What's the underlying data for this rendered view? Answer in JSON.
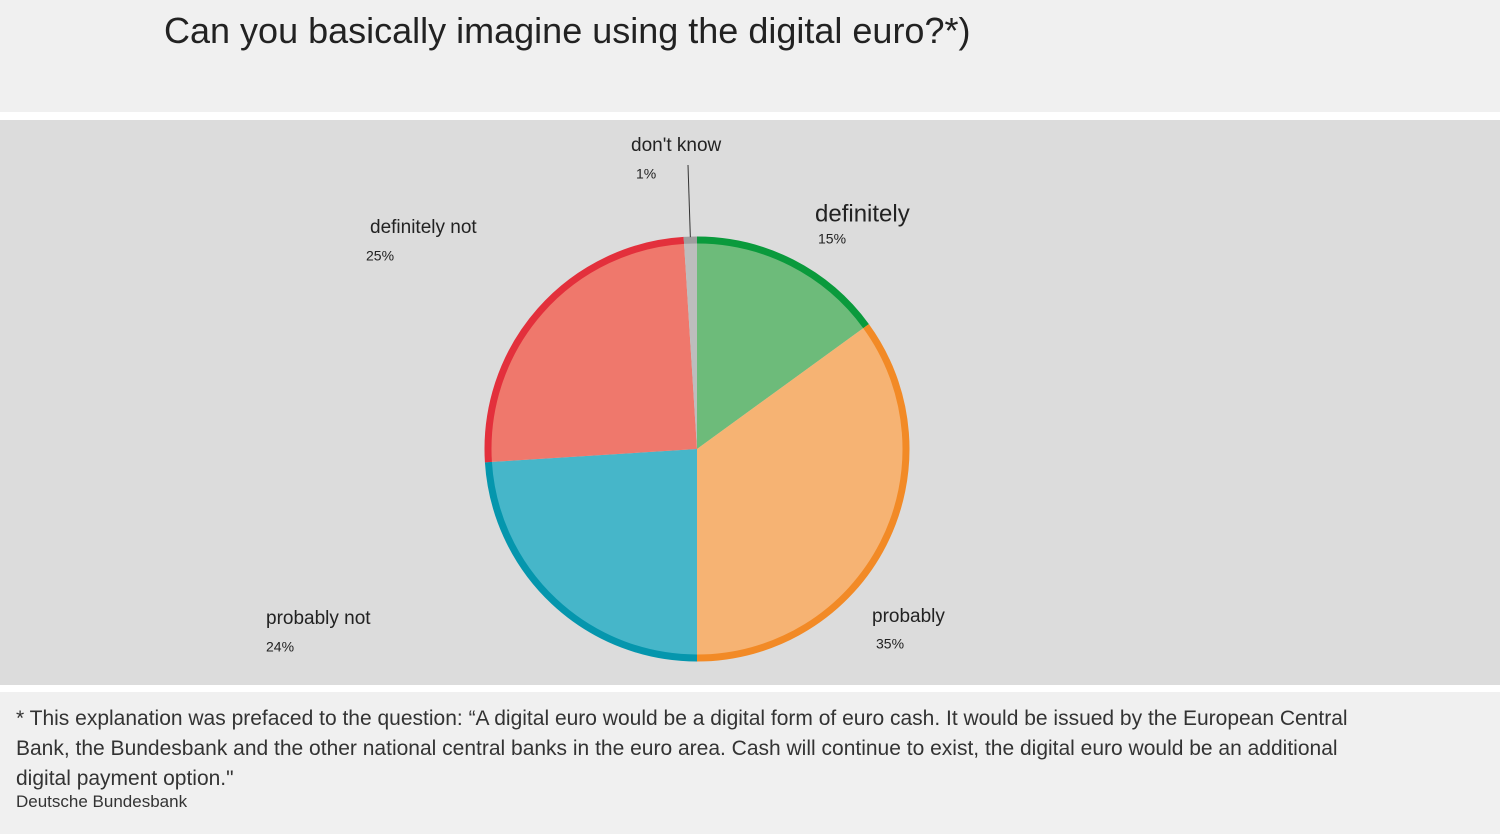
{
  "chart_data": {
    "type": "pie",
    "title": "Can you basically imagine using the digital euro?*)",
    "categories": [
      "definitely",
      "probably",
      "probably not",
      "definitely not",
      "don't know"
    ],
    "values": [
      15,
      35,
      24,
      25,
      1
    ],
    "value_labels": [
      "15%",
      "35%",
      "24%",
      "25%",
      "1%"
    ],
    "colors": [
      "#6dbb7a",
      "#f6b373",
      "#46b6c9",
      "#ef786c",
      "#bdbdbd"
    ],
    "border_colors": [
      "#0a9a3c",
      "#f28a26",
      "#0596ad",
      "#e3303c",
      "#9e9e9e"
    ],
    "footnote": " * This explanation was prefaced to the question: “A digital euro would be a digital form of euro cash. It would be issued by the European Central Bank, the Bundesbank and the other national central banks in the euro area. Cash will continue to exist, the digital euro would be an additional digital payment option.\"",
    "source": "Deutsche Bundesbank"
  }
}
